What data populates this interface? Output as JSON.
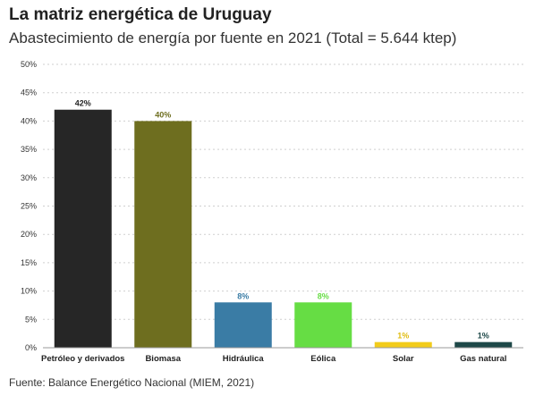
{
  "title": "La matriz energética de Uruguay",
  "subtitle": "Abastecimiento de energía por fuente en 2021 (Total = 5.644 ktep)",
  "source": "Fuente: Balance Energético Nacional (MIEM, 2021)",
  "chart_data": {
    "type": "bar",
    "categories": [
      "Petróleo y derivados",
      "Biomasa",
      "Hidráulica",
      "Eólica",
      "Solar",
      "Gas natural"
    ],
    "values": [
      42,
      40,
      8,
      8,
      1,
      1
    ],
    "value_labels": [
      "42%",
      "40%",
      "8%",
      "8%",
      "1%",
      "1%"
    ],
    "colors": [
      "#262626",
      "#6e6e1f",
      "#3a7ca5",
      "#66dd44",
      "#f2cc1b",
      "#1e4848"
    ],
    "label_colors": [
      "#262626",
      "#6e6e1f",
      "#3a7ca5",
      "#66dd44",
      "#e0bc10",
      "#1e4848"
    ],
    "ylim": [
      0,
      50
    ],
    "yticks": [
      0,
      5,
      10,
      15,
      20,
      25,
      30,
      35,
      40,
      45,
      50
    ],
    "ytick_labels": [
      "0%",
      "5%",
      "10%",
      "15%",
      "20%",
      "25%",
      "30%",
      "35%",
      "40%",
      "45%",
      "50%"
    ],
    "grid": true,
    "xlabel": "",
    "ylabel": ""
  }
}
